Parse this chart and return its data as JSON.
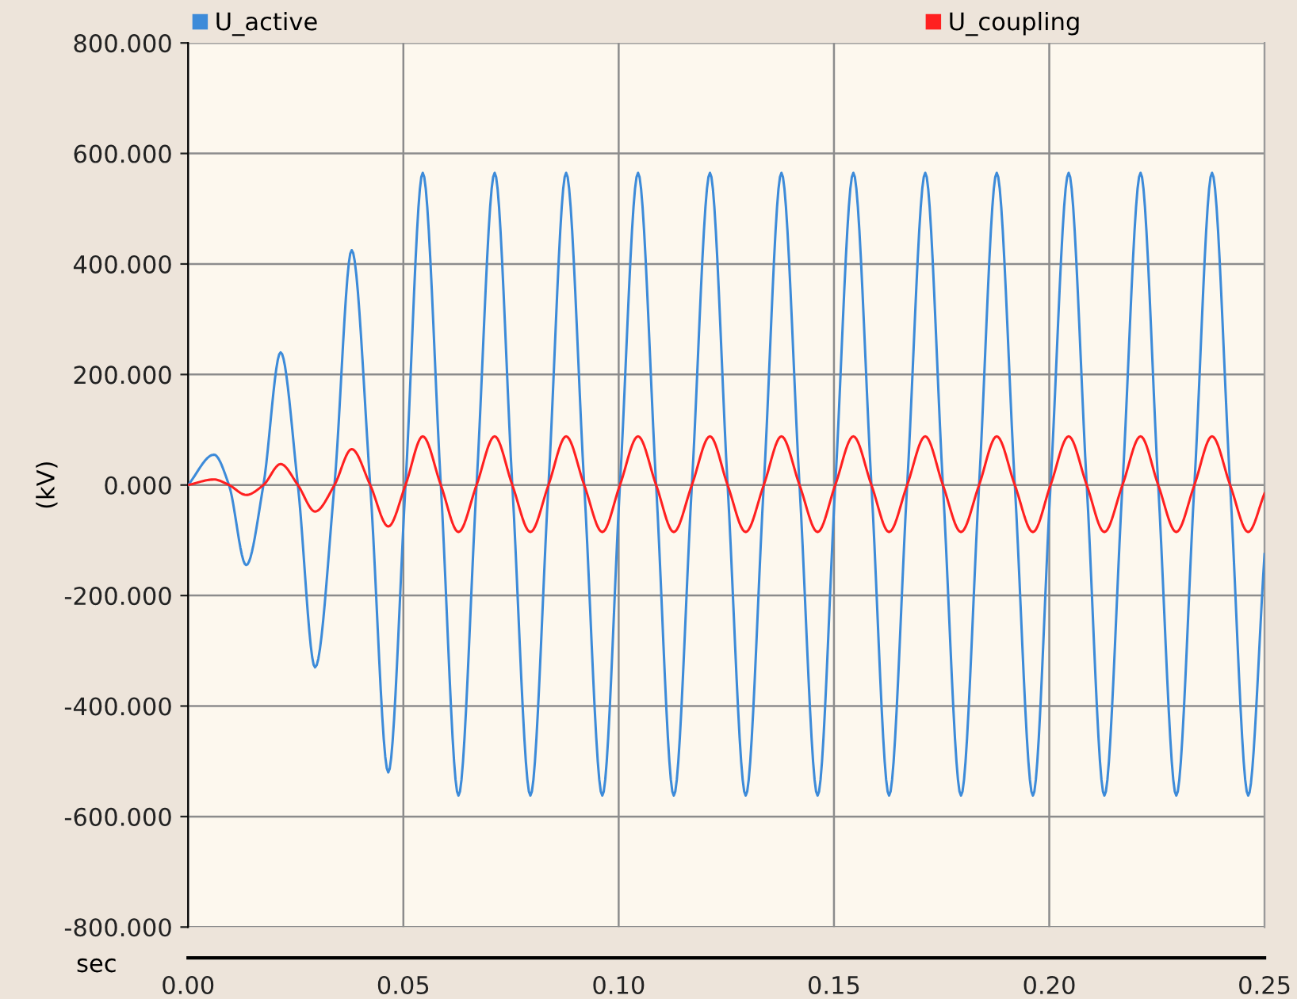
{
  "chart_data": {
    "type": "line",
    "xlabel": "sec",
    "ylabel": "(kV)",
    "x": [
      0,
      0.006,
      0.0095,
      0.0135,
      0.0175,
      0.0215,
      0.0255,
      0.0295,
      0.034,
      0.038,
      0.0423,
      0.0465,
      0.0505,
      0.0545,
      0.0587,
      0.0628,
      0.067,
      0.0712,
      0.0753,
      0.0795,
      0.0837,
      0.0878,
      0.092,
      0.0962,
      0.1003,
      0.1045,
      0.1087,
      0.1128,
      0.117,
      0.1212,
      0.1253,
      0.1295,
      0.1337,
      0.1378,
      0.142,
      0.1462,
      0.1503,
      0.1545,
      0.1587,
      0.1628,
      0.167,
      0.1712,
      0.1753,
      0.1795,
      0.1837,
      0.1878,
      0.192,
      0.1962,
      0.2003,
      0.2045,
      0.2087,
      0.2128,
      0.217,
      0.2212,
      0.2253,
      0.2295,
      0.2337,
      0.2378,
      0.242,
      0.2462,
      0.25
    ],
    "series": [
      {
        "name": "U_active",
        "color": "#3d8bd9",
        "values": [
          0,
          55,
          0,
          -145,
          0,
          240,
          0,
          -330,
          0,
          425,
          0,
          -520,
          0,
          565,
          0,
          -562,
          0,
          565,
          0,
          -562,
          0,
          565,
          0,
          -562,
          0,
          565,
          0,
          -562,
          0,
          565,
          0,
          -562,
          0,
          565,
          0,
          -562,
          0,
          565,
          0,
          -562,
          0,
          565,
          0,
          -562,
          0,
          565,
          0,
          -562,
          0,
          565,
          0,
          -562,
          0,
          565,
          0,
          -562,
          0,
          565,
          0,
          -562,
          -125
        ]
      },
      {
        "name": "U_coupling",
        "color": "#ff2020",
        "values": [
          0,
          10,
          0,
          -18,
          0,
          38,
          0,
          -48,
          0,
          65,
          0,
          -75,
          0,
          88,
          0,
          -85,
          0,
          88,
          0,
          -85,
          0,
          88,
          0,
          -85,
          0,
          88,
          0,
          -85,
          0,
          88,
          0,
          -85,
          0,
          88,
          0,
          -85,
          0,
          88,
          0,
          -85,
          0,
          88,
          0,
          -85,
          0,
          88,
          0,
          -85,
          0,
          88,
          0,
          -85,
          0,
          88,
          0,
          -85,
          0,
          88,
          0,
          -85,
          -15
        ]
      }
    ],
    "xlim": [
      0,
      0.25
    ],
    "xticks": [
      {
        "value": 0,
        "label": "0.00"
      },
      {
        "value": 0.05,
        "label": "0.05"
      },
      {
        "value": 0.1,
        "label": "0.10"
      },
      {
        "value": 0.15,
        "label": "0.15"
      },
      {
        "value": 0.2,
        "label": "0.20"
      },
      {
        "value": 0.25,
        "label": "0.25"
      }
    ],
    "ylim": [
      -800,
      800
    ],
    "yticks": [
      {
        "value": -800,
        "label": "-800.000"
      },
      {
        "value": -600,
        "label": "-600.000"
      },
      {
        "value": -400,
        "label": "-400.000"
      },
      {
        "value": -200,
        "label": "-200.000"
      },
      {
        "value": 0,
        "label": "0.000"
      },
      {
        "value": 200,
        "label": "200.000"
      },
      {
        "value": 400,
        "label": "400.000"
      },
      {
        "value": 600,
        "label": "600.000"
      },
      {
        "value": 800,
        "label": "800.000"
      }
    ],
    "grid": true,
    "legend": "top",
    "line_style": "solid",
    "marker": "none"
  }
}
